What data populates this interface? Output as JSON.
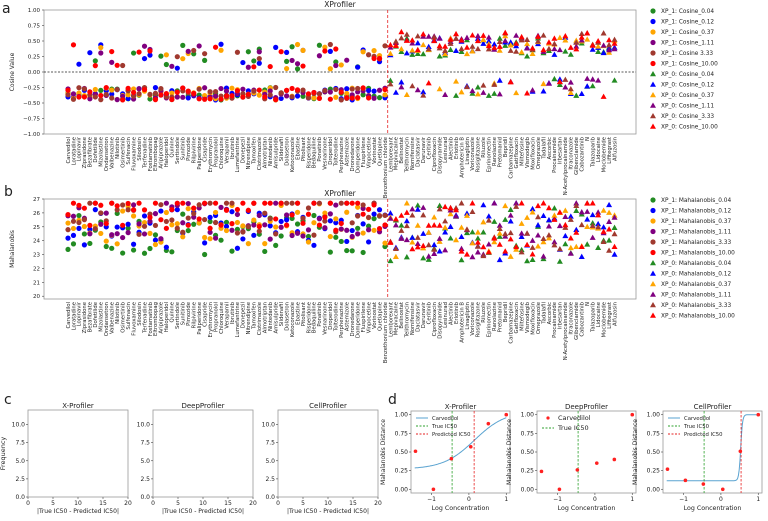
{
  "panel_labels": [
    "a",
    "b",
    "c",
    "d"
  ],
  "drugs": [
    "Carvedilol",
    "Loratadine",
    "Lopinavir",
    "Ziprasidone",
    "Bezafibrate",
    "Dofetilide",
    "Mizolastine",
    "Ondansetron",
    "Valbenazine",
    "Nilotinib",
    "Osimertinib",
    "Sulfenacin",
    "Fluvoxamine",
    "Silodosin",
    "Terfenadine",
    "Fostamatinib",
    "Eltrombopag",
    "Aripiprazole",
    "Haloperidol",
    "Quinine",
    "Sertindole",
    "Sunitinib",
    "Pimozide",
    "Rilpivirine",
    "Paliperidone",
    "Cisapride",
    "Erythromycin",
    "Propranolol",
    "Chloroquine",
    "Verapamil",
    "Ibrutinib",
    "Lumefantrine",
    "Donepezil",
    "Nitrendipine",
    "Tamoxifen",
    "Clotrimazole",
    "Almotriptan",
    "Nintedanib",
    "Amisulpride",
    "Sildenafil",
    "Dolasetron",
    "Ketoconazole",
    "Ebastine",
    "Pitolisant",
    "Risperidone",
    "Bedaquiline",
    "Ponatinib",
    "Vesnarinone",
    "Droperidol",
    "Tolterodine",
    "Perphenazine",
    "Astemizole",
    "Dronedarone",
    "Domperidone",
    "Fluspirilene",
    "Vinpocetine",
    "Vorinostat",
    "Quetiapine",
    "Benzethonium chloride",
    "Lemborexant",
    "Mepivacaine",
    "Belinostat",
    "Telithromycin",
    "Nomifensine",
    "Daclatasvir",
    "Darunavir",
    "Ceritinib",
    "Ciprofloxacin",
    "Disopyramide",
    "Lesinurad",
    "Alectinib",
    "Erlotinib",
    "Amphotericin B",
    "Linagliptin",
    "Voriconazole",
    "Rosiglitazone",
    "Riluzole",
    "Eprinomectin",
    "Ranolazine",
    "Pretomanid",
    "Bepridil",
    "Carbamazepine",
    "Gatifloxacin",
    "Miltefosine",
    "Vismodegib",
    "Moxifloxacin",
    "Omeprazole",
    "Tadalafil",
    "Ascorbic",
    "Procainamide",
    "Irbesartan",
    "N-Acetylprocainamide",
    "Itraconazole",
    "Glibenclamide",
    "Cabozantinib",
    "N",
    "Talazoparib",
    "Lidocaine",
    "Moclobemide",
    "Lifitegrast",
    "Alfuzosin"
  ],
  "divider_index": 59,
  "colors": {
    "c0.04": "#228b22",
    "c0.12": "#0000ff",
    "c0.37": "#ffa500",
    "c1.11": "#800080",
    "c3.33": "#a0392f",
    "c10.00": "#ff0000",
    "curve": "#5aa3d0",
    "true_ic50": "#2ca02c",
    "pred_ic50": "#e62020"
  },
  "chart_data": [
    {
      "type": "scatter",
      "title": "XProfiler",
      "ylabel": "Cosine Value",
      "ylim": [
        -1.0,
        1.0
      ],
      "yticks": [
        "1.00",
        "0.75",
        "0.50",
        "0.25",
        "0.00",
        "−0.25",
        "−0.50",
        "−0.75",
        "−1.00"
      ],
      "hline": 0,
      "legend": [
        "XP_1: Cosine_0.04",
        "XP_1: Cosine_0.12",
        "XP_1: Cosine_0.37",
        "XP_1: Cosine_1.11",
        "XP_1: Cosine 3.33",
        "XP_1: Cosine_10.00",
        "XP_0: Cosine_0.04",
        "XP_0: Cosine_0.12",
        "XP_0: Cosine_0.37",
        "XP_0: Cosine_1.11",
        "XP_0: Cosine_3.33",
        "XP_0: Cosine_10.00"
      ],
      "legend_position": "outside-right",
      "series_note": "values estimated per drug; XP_1 (circles) for drugs left of divider, XP_0 (triangles) right"
    },
    {
      "type": "scatter",
      "title": "XProfiler",
      "ylabel": "Mahalanobis",
      "ylim": [
        19.8,
        27
      ],
      "yticks": [
        "27",
        "26",
        "25",
        "24",
        "23",
        "22",
        "21",
        "20"
      ],
      "legend": [
        "XP_1: Mahalanobis_0.04",
        "XP_1: Mahalanobis_0.12",
        "XP_1: Mahalanobis_0.37",
        "XP_1: Mahalanobis_1.11",
        "XP_1: Mahalanobis_3.33",
        "XP_1: Mahalanobis_10.00",
        "XP_0: Mahalanobis_0.04",
        "XP_0: Mahalanobis_0.12",
        "XP_0: Mahalanobis_0.37",
        "XP_0: Mahalanobis_1.11",
        "XP_0: Mahalanobis_3.33",
        "XP_0: Mahalanobis_10.00"
      ],
      "legend_position": "outside-right"
    },
    {
      "type": "bar",
      "panels": [
        "X-Profiler",
        "DeepProfiler",
        "CellProfiler"
      ],
      "xlabel": "|True IC50 - Predicted IC50|",
      "ylabel": "Frequency",
      "xlim": [
        0,
        20
      ],
      "ylim": [
        0,
        12
      ],
      "xticks": [
        "0",
        "5",
        "10",
        "15",
        "20"
      ],
      "yticks": [
        "0.0",
        "2.5",
        "5.0",
        "7.5",
        "10.0"
      ],
      "values": []
    },
    {
      "type": "line",
      "xlabel": "Log Concentration",
      "ylabel": "Mahalanobis Distance",
      "xticks": [
        "−1",
        "0",
        "1"
      ],
      "yticks": [
        "0.00",
        "0.25",
        "0.50",
        "0.75",
        "1.00"
      ],
      "panels": [
        {
          "title": "X-Profiler",
          "legend": [
            "Carvedilol",
            "True IC50",
            "Predicted IC50"
          ],
          "points": [
            [
              -1.43,
              0.51
            ],
            [
              -0.95,
              0.0
            ],
            [
              -0.47,
              0.41
            ],
            [
              0.05,
              0.57
            ],
            [
              0.52,
              0.88
            ],
            [
              1.0,
              1.0
            ]
          ],
          "curve": "sigmoid",
          "curve_params": {
            "bottom": 0.27,
            "top": 1.05,
            "mid": 0.15,
            "slope": 2.4
          },
          "true_ic50": -0.45,
          "pred_ic50": 0.14
        },
        {
          "title": "DeepProfiler",
          "legend": [
            "Carvedilol",
            "True IC50"
          ],
          "points": [
            [
              -1.43,
              0.24
            ],
            [
              -0.95,
              0.0
            ],
            [
              -0.47,
              0.26
            ],
            [
              0.05,
              0.35
            ],
            [
              0.52,
              0.4
            ],
            [
              1.0,
              1.0
            ]
          ],
          "true_ic50": -0.45
        },
        {
          "title": "CellProfiler",
          "legend": [
            "Carvedilol",
            "True IC50",
            "Predicted IC50"
          ],
          "points": [
            [
              -1.43,
              0.27
            ],
            [
              -0.95,
              0.12
            ],
            [
              -0.47,
              0.07
            ],
            [
              0.05,
              0.0
            ],
            [
              0.52,
              0.51
            ],
            [
              1.0,
              1.0
            ]
          ],
          "curve": "sigmoid",
          "curve_params": {
            "bottom": 0.115,
            "top": 1.0,
            "mid": 0.53,
            "slope": 40
          },
          "true_ic50": -0.45,
          "pred_ic50": 0.54
        }
      ]
    }
  ]
}
